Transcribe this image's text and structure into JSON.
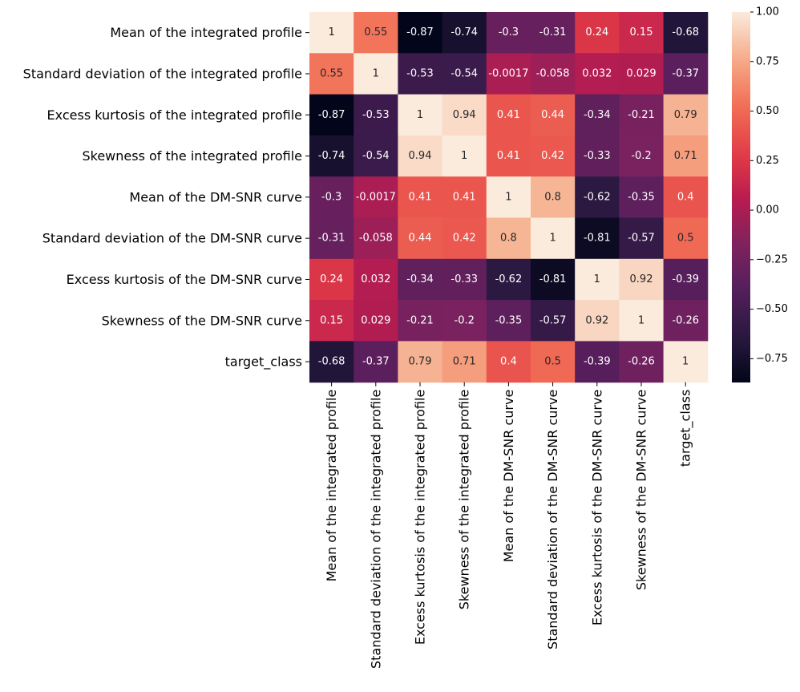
{
  "chart_data": {
    "type": "heatmap",
    "title": "",
    "xlabel": "",
    "ylabel": "",
    "labels": [
      "Mean of the integrated profile",
      "Standard deviation of the integrated profile",
      "Excess kurtosis of the integrated profile",
      "Skewness of the integrated profile",
      "Mean of the DM-SNR curve",
      "Standard deviation of the DM-SNR curve",
      "Excess kurtosis of the DM-SNR curve",
      "Skewness of the DM-SNR curve",
      "target_class"
    ],
    "values": [
      [
        1,
        0.55,
        -0.87,
        -0.74,
        -0.3,
        -0.31,
        0.24,
        0.15,
        -0.68
      ],
      [
        0.55,
        1,
        -0.53,
        -0.54,
        -0.0017,
        -0.058,
        0.032,
        0.029,
        -0.37
      ],
      [
        -0.87,
        -0.53,
        1,
        0.94,
        0.41,
        0.44,
        -0.34,
        -0.21,
        0.79
      ],
      [
        -0.74,
        -0.54,
        0.94,
        1,
        0.41,
        0.42,
        -0.33,
        -0.2,
        0.71
      ],
      [
        -0.3,
        -0.0017,
        0.41,
        0.41,
        1,
        0.8,
        -0.62,
        -0.35,
        0.4
      ],
      [
        -0.31,
        -0.058,
        0.44,
        0.42,
        0.8,
        1,
        -0.81,
        -0.57,
        0.5
      ],
      [
        0.24,
        0.032,
        -0.34,
        -0.33,
        -0.62,
        -0.81,
        1,
        0.92,
        -0.39
      ],
      [
        0.15,
        0.029,
        -0.21,
        -0.2,
        -0.35,
        -0.57,
        0.92,
        1,
        -0.26
      ],
      [
        -0.68,
        -0.37,
        0.79,
        0.71,
        0.4,
        0.5,
        -0.39,
        -0.26,
        1
      ]
    ],
    "annotations": [
      [
        "1",
        "0.55",
        "-0.87",
        "-0.74",
        "-0.3",
        "-0.31",
        "0.24",
        "0.15",
        "-0.68"
      ],
      [
        "0.55",
        "1",
        "-0.53",
        "-0.54",
        "-0.0017",
        "-0.058",
        "0.032",
        "0.029",
        "-0.37"
      ],
      [
        "-0.87",
        "-0.53",
        "1",
        "0.94",
        "0.41",
        "0.44",
        "-0.34",
        "-0.21",
        "0.79"
      ],
      [
        "-0.74",
        "-0.54",
        "0.94",
        "1",
        "0.41",
        "0.42",
        "-0.33",
        "-0.2",
        "0.71"
      ],
      [
        "-0.3",
        "-0.0017",
        "0.41",
        "0.41",
        "1",
        "0.8",
        "-0.62",
        "-0.35",
        "0.4"
      ],
      [
        "-0.31",
        "-0.058",
        "0.44",
        "0.42",
        "0.8",
        "1",
        "-0.81",
        "-0.57",
        "0.5"
      ],
      [
        "0.24",
        "0.032",
        "-0.34",
        "-0.33",
        "-0.62",
        "-0.81",
        "1",
        "0.92",
        "-0.39"
      ],
      [
        "0.15",
        "0.029",
        "-0.21",
        "-0.2",
        "-0.35",
        "-0.57",
        "0.92",
        "1",
        "-0.26"
      ],
      [
        "-0.68",
        "-0.37",
        "0.79",
        "0.71",
        "0.4",
        "0.5",
        "-0.39",
        "-0.26",
        "1"
      ]
    ],
    "colorbar": {
      "colormap": "rocket",
      "vmin": -0.87,
      "vmax": 1,
      "ticks": [
        1.0,
        0.75,
        0.5,
        0.25,
        0.0,
        -0.25,
        -0.5,
        -0.75
      ],
      "tick_labels": [
        "1.00",
        "0.75",
        "0.50",
        "0.25",
        "0.00",
        "−0.25",
        "−0.50",
        "−0.75"
      ]
    },
    "grid": false,
    "legend": "none"
  }
}
